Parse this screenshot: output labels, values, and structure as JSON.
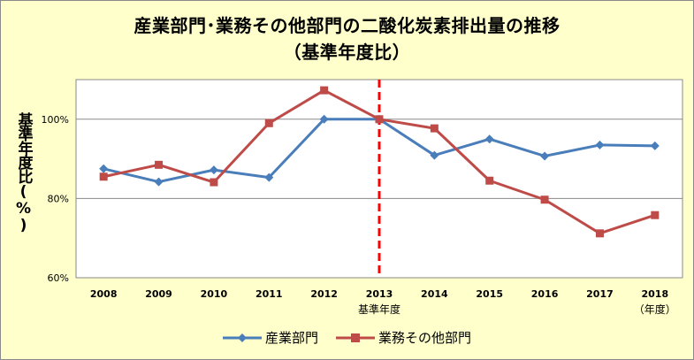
{
  "chart_data": {
    "type": "line",
    "title": "産業部門･業務その他部門の二酸化炭素排出量の推移",
    "subtitle": "（基準年度比）",
    "ylabel": "基準年度比(%)",
    "xlabel": "基準年度",
    "x_unit": "（年度）",
    "categories": [
      "2008",
      "2009",
      "2010",
      "2011",
      "2012",
      "2013",
      "2014",
      "2015",
      "2016",
      "2017",
      "2018"
    ],
    "ylim": [
      60,
      110
    ],
    "yticks": [
      60,
      80,
      100
    ],
    "ytick_labels": [
      "60%",
      "80%",
      "100%"
    ],
    "grid": true,
    "reference_line": {
      "x": "2013",
      "color": "#ff0000",
      "style": "dashed"
    },
    "legend_position": "bottom",
    "series": [
      {
        "name": "産業部門",
        "color": "#4a7ebb",
        "marker": "diamond",
        "values": [
          87.5,
          84.2,
          87.2,
          85.3,
          100.0,
          100.0,
          90.9,
          95.0,
          90.7,
          93.5,
          93.3
        ]
      },
      {
        "name": "業務その他部門",
        "color": "#be4b48",
        "marker": "square",
        "values": [
          85.5,
          88.5,
          84.1,
          99.0,
          107.3,
          100.0,
          97.7,
          84.5,
          79.7,
          71.2,
          75.8
        ]
      }
    ]
  }
}
